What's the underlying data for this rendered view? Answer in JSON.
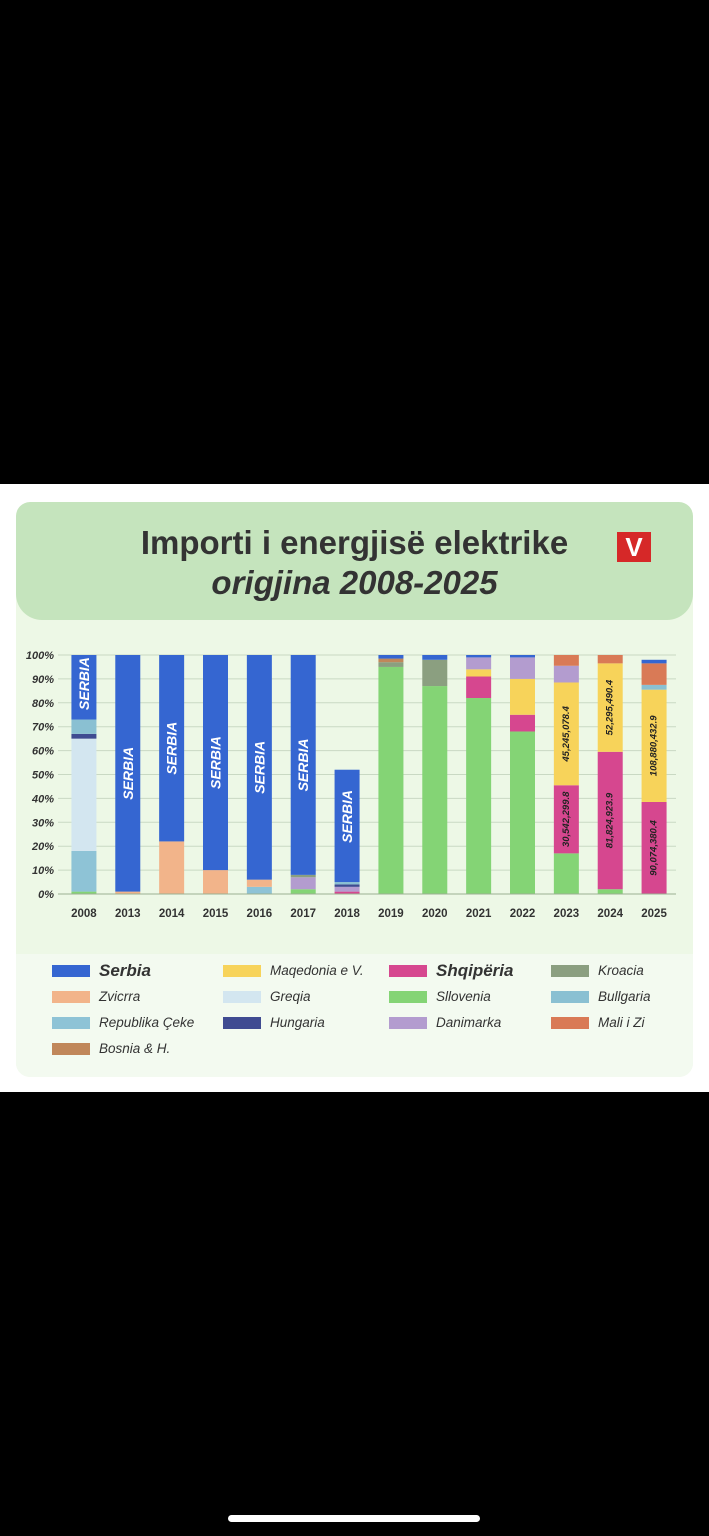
{
  "header": {
    "title": "Importi i energjisë elektrike",
    "subtitle": "origjina 2008-2025",
    "logo_text": "V"
  },
  "chart_data": {
    "type": "bar",
    "stacked": true,
    "ylim": [
      0,
      100
    ],
    "yticks": [
      "0%",
      "10%",
      "20%",
      "30%",
      "40%",
      "50%",
      "60%",
      "70%",
      "80%",
      "90%",
      "100%"
    ],
    "categories": [
      "2008",
      "2013",
      "2014",
      "2015",
      "2016",
      "2017",
      "2018",
      "2019",
      "2020",
      "2021",
      "2022",
      "2023",
      "2024",
      "2025"
    ],
    "bar_text_label": "SERBIA",
    "series": [
      {
        "name": "Slovenia",
        "color": "#84d475",
        "values": [
          1,
          0,
          0,
          0,
          0,
          2,
          0,
          95,
          87,
          82,
          68,
          17,
          2,
          0
        ]
      },
      {
        "name": "Shqipëria",
        "color": "#d6478f",
        "values": [
          0,
          0,
          0,
          0,
          0,
          0,
          1,
          0,
          0,
          9,
          7,
          28.5,
          57.5,
          38.5
        ]
      },
      {
        "name": "Maqedonia e V.",
        "color": "#f7d35a",
        "values": [
          0,
          0,
          0,
          0,
          0,
          0,
          0,
          0,
          0,
          3,
          15,
          43,
          37,
          47
        ]
      },
      {
        "name": "Republika Çeke",
        "color": "#8ec3d6",
        "values": [
          17,
          0,
          0,
          0,
          3,
          0,
          0,
          0,
          0,
          0,
          0,
          0,
          0,
          0
        ]
      },
      {
        "name": "Zvicrra",
        "color": "#f2b48a",
        "values": [
          0,
          1,
          22,
          10,
          3,
          0,
          0,
          0,
          0,
          0,
          0,
          0,
          0,
          0
        ]
      },
      {
        "name": "Greqia",
        "color": "#d3e6f0",
        "values": [
          47,
          0,
          0,
          0,
          0,
          0,
          0,
          0,
          0,
          0,
          0,
          0,
          0,
          0
        ]
      },
      {
        "name": "Danimarka",
        "color": "#b39ccf",
        "values": [
          0,
          0,
          0,
          0,
          0,
          5,
          2,
          0,
          0,
          5,
          9,
          7,
          0,
          0
        ]
      },
      {
        "name": "Kroacia",
        "color": "#8b9f80",
        "values": [
          0,
          0,
          0,
          0,
          0,
          1,
          0,
          2,
          11,
          0,
          0,
          0,
          0,
          0
        ]
      },
      {
        "name": "Hungaria",
        "color": "#3f4b91",
        "values": [
          2,
          0,
          0,
          0,
          0,
          0,
          1,
          0,
          0,
          0,
          0,
          0,
          0,
          0
        ]
      },
      {
        "name": "Bullgaria",
        "color": "#8ac0d2",
        "values": [
          6,
          0,
          0,
          0,
          0,
          0,
          1,
          0,
          0,
          0,
          0,
          0,
          0,
          2
        ]
      },
      {
        "name": "Mali i Zi",
        "color": "#d97a56",
        "values": [
          0,
          0,
          0,
          0,
          0,
          0,
          0,
          0,
          0,
          0,
          0,
          4.5,
          3.5,
          9
        ]
      },
      {
        "name": "Bosnia & H.",
        "color": "#c0875a",
        "values": [
          0,
          0,
          0,
          0,
          0,
          0,
          0,
          1.5,
          0,
          0,
          0,
          0,
          0,
          0
        ]
      },
      {
        "name": "Serbia",
        "color": "#3566d1",
        "values": [
          27,
          99,
          78,
          90,
          94,
          92,
          47,
          1.5,
          2,
          1,
          1,
          0,
          0,
          1.5
        ]
      }
    ],
    "annotations": [
      {
        "category": "2023",
        "series": "Shqipëria",
        "text": "30,542,299.8"
      },
      {
        "category": "2023",
        "series": "Maqedonia e V.",
        "text": "45,245,078.4"
      },
      {
        "category": "2024",
        "series": "Shqipëria",
        "text": "81,824,923.9"
      },
      {
        "category": "2024",
        "series": "Maqedonia e V.",
        "text": "52,295,490.4"
      },
      {
        "category": "2025",
        "series": "Shqipëria",
        "text": "90,074,380.4"
      },
      {
        "category": "2025",
        "series": "Maqedonia e V.",
        "text": "108,880,432.9"
      }
    ],
    "serbia_label_years": [
      "2008",
      "2013",
      "2014",
      "2015",
      "2016",
      "2017",
      "2018"
    ]
  },
  "legend": [
    {
      "label": "Serbia",
      "color": "#3566d1",
      "emphasis": true
    },
    {
      "label": "Maqedonia e V.",
      "color": "#f7d35a"
    },
    {
      "label": "Shqipëria",
      "color": "#d6478f",
      "emphasis": true
    },
    {
      "label": "Kroacia",
      "color": "#8b9f80"
    },
    {
      "label": "Zvicrra",
      "color": "#f2b48a"
    },
    {
      "label": "Greqia",
      "color": "#d3e6f0"
    },
    {
      "label": "Sllovenia",
      "color": "#84d475"
    },
    {
      "label": "Bullgaria",
      "color": "#8ac0d2"
    },
    {
      "label": "Republika Çeke",
      "color": "#8ec3d6"
    },
    {
      "label": "Hungaria",
      "color": "#3f4b91"
    },
    {
      "label": "Danimarka",
      "color": "#b39ccf"
    },
    {
      "label": "Mali i Zi",
      "color": "#d97a56"
    },
    {
      "label": "Bosnia & H.",
      "color": "#c0875a"
    }
  ]
}
